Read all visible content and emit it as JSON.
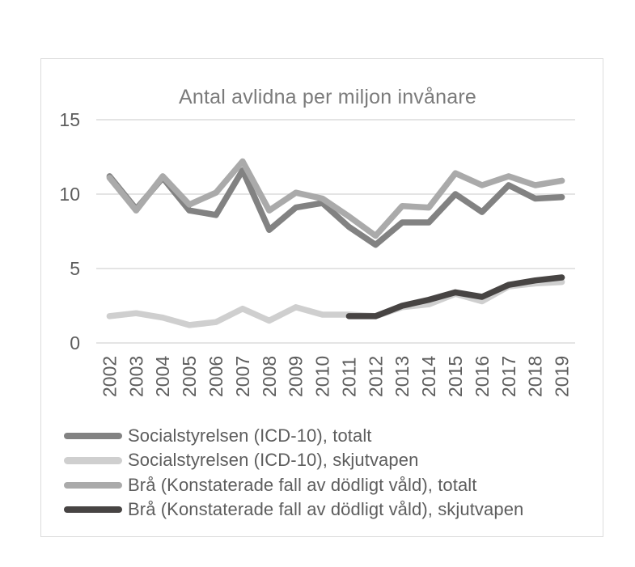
{
  "page": {
    "background": "#ffffff"
  },
  "chart": {
    "style": {
      "frame_border_color": "#dcdcdc",
      "gridline_color": "#dbdbdb",
      "title_color": "#7b7b7b",
      "tick_label_color": "#5d5d5d",
      "legend_text_color": "#5d5d5d",
      "line_width": 7.5
    }
  },
  "chart_data": {
    "type": "line",
    "title": "Antal avlidna per miljon invånare",
    "xlabel": "",
    "ylabel": "",
    "ylim": [
      0,
      15
    ],
    "yticks": [
      0,
      5,
      10,
      15
    ],
    "grid": true,
    "legend_position": "bottom-left",
    "x": [
      2002,
      2003,
      2004,
      2005,
      2006,
      2007,
      2008,
      2009,
      2010,
      2011,
      2012,
      2013,
      2014,
      2015,
      2016,
      2017,
      2018,
      2019
    ],
    "series": [
      {
        "name": "Socialstyrelsen (ICD-10), totalt",
        "color": "#828282",
        "values": [
          11.2,
          9.0,
          11.1,
          8.9,
          8.6,
          11.6,
          7.6,
          9.1,
          9.4,
          7.8,
          6.6,
          8.1,
          8.1,
          10.0,
          8.8,
          10.6,
          9.7,
          9.8
        ]
      },
      {
        "name": "Socialstyrelsen (ICD-10), skjutvapen",
        "color": "#cfcfcf",
        "values": [
          1.8,
          2.0,
          1.7,
          1.2,
          1.4,
          2.3,
          1.5,
          2.4,
          1.9,
          1.9,
          1.8,
          2.4,
          2.6,
          3.3,
          2.8,
          3.8,
          4.0,
          4.1
        ]
      },
      {
        "name": "Brå (Konstaterade fall av dödligt våld), totalt",
        "color": "#aaaaaa",
        "values": [
          11.1,
          8.9,
          11.2,
          9.3,
          10.1,
          12.2,
          8.9,
          10.1,
          9.7,
          8.5,
          7.2,
          9.2,
          9.1,
          11.4,
          10.6,
          11.2,
          10.6,
          10.9
        ]
      },
      {
        "name": "Brå (Konstaterade fall av dödligt våld), skjutvapen",
        "color": "#474443",
        "values": [
          null,
          null,
          null,
          null,
          null,
          null,
          null,
          null,
          null,
          1.8,
          1.8,
          2.5,
          2.9,
          3.4,
          3.1,
          3.9,
          4.2,
          4.4
        ]
      }
    ]
  }
}
